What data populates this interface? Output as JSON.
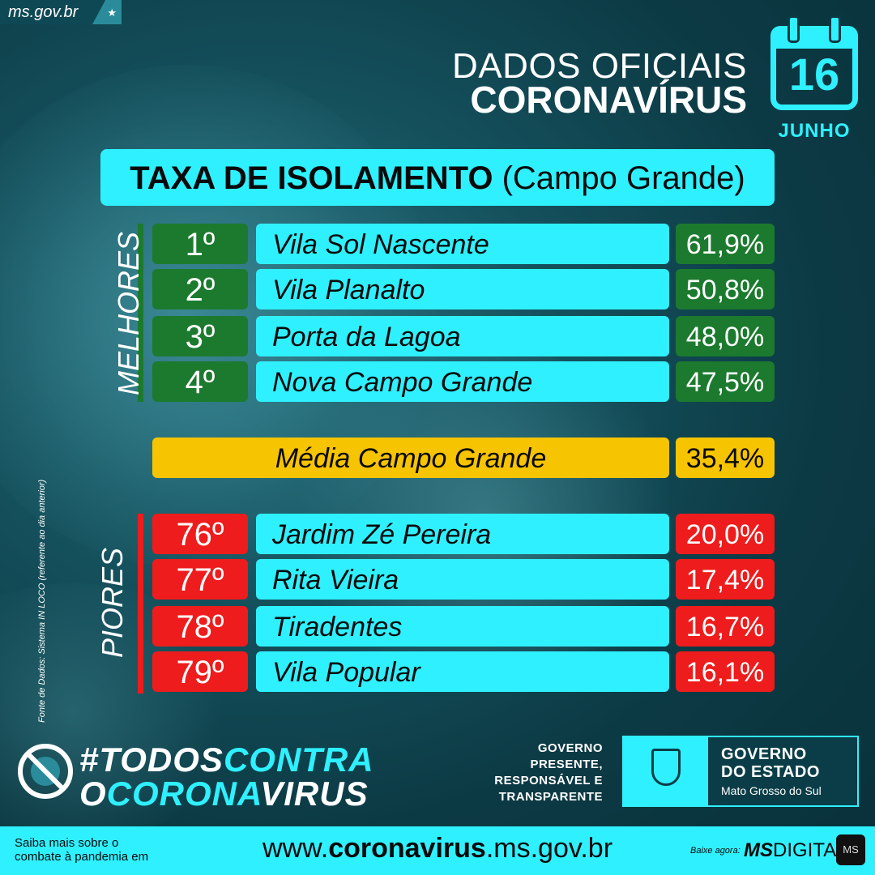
{
  "site_tab": "ms.gov.br",
  "header": {
    "line1": "DADOS OFICIAIS",
    "line2": "CORONAVÍRUS"
  },
  "calendar": {
    "day": "16",
    "month": "JUNHO"
  },
  "title": {
    "bold": "TAXA DE ISOLAMENTO",
    "rest": " (Campo Grande)"
  },
  "best": {
    "label": "MELHORES",
    "rows": [
      {
        "rank": "1º",
        "name": "Vila Sol Nascente",
        "value": "61,9%"
      },
      {
        "rank": "2º",
        "name": "Vila Planalto",
        "value": "50,8%"
      },
      {
        "rank": "3º",
        "name": "Porta da Lagoa",
        "value": "48,0%"
      },
      {
        "rank": "4º",
        "name": "Nova Campo Grande",
        "value": "47,5%"
      }
    ]
  },
  "average": {
    "name": "Média Campo Grande",
    "value": "35,4%"
  },
  "worst": {
    "label": "PIORES",
    "rows": [
      {
        "rank": "76º",
        "name": "Jardim Zé Pereira",
        "value": "20,0%"
      },
      {
        "rank": "77º",
        "name": "Rita Vieira",
        "value": "17,4%"
      },
      {
        "rank": "78º",
        "name": "Tiradentes",
        "value": "16,7%"
      },
      {
        "rank": "79º",
        "name": "Vila Popular",
        "value": "16,1%"
      }
    ]
  },
  "source": "Fonte de Dados: Sistema IN LOCO (referente ao dia anterior)",
  "hashtag": {
    "p1": "#TODOS",
    "p2": "CONTRA",
    "p3": "O",
    "p4": "CORONA",
    "p5": "VIRUS"
  },
  "gov_slogan": {
    "l1": "GOVERNO",
    "l2": "PRESENTE,",
    "l3": "RESPONSÁVEL E",
    "l4": "TRANSPARENTE"
  },
  "gov_logo": {
    "l1": "GOVERNO",
    "l2": "DO ESTADO",
    "l3": "Mato Grosso do Sul"
  },
  "footer": {
    "info1": "Saiba mais sobre o",
    "info2": "combate à pandemia em",
    "url_pre": "www.",
    "url_bold": "coronavirus",
    "url_post": ".ms.gov.br",
    "baixe": "Baixe agora:",
    "app_bold": "MS",
    "app_rest": "DIGITAL",
    "app_icon": "MS"
  },
  "colors": {
    "accent": "#2ff0ff",
    "best": "#1c7a2e",
    "worst": "#ee1c1c",
    "average": "#f6c400"
  },
  "icons": [
    "star-icon",
    "calendar-icon",
    "no-virus-icon",
    "state-emblem-icon",
    "ms-digital-app-icon"
  ]
}
